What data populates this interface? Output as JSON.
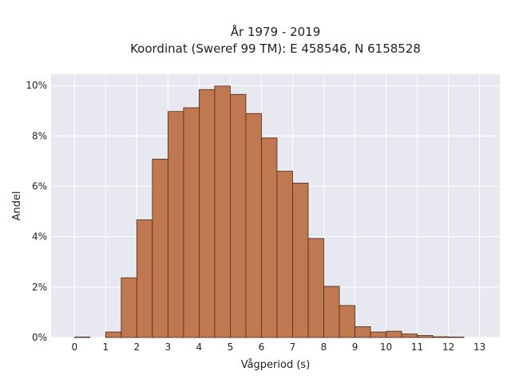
{
  "chart_data": {
    "type": "bar",
    "title_line1": "År 1979 - 2019",
    "title_line2": "Koordinat (Sweref 99 TM): E 458546, N 6158528",
    "xlabel": "Vågperiod (s)",
    "ylabel": "Andel",
    "bin_width": 0.5,
    "x": [
      0,
      0.5,
      1,
      1.5,
      2,
      2.5,
      3,
      3.5,
      4,
      4.5,
      5,
      5.5,
      6,
      6.5,
      7,
      7.5,
      8,
      8.5,
      9,
      9.5,
      10,
      10.5,
      11,
      11.5,
      12,
      12.5
    ],
    "values": [
      0.02,
      0,
      0.22,
      2.37,
      4.67,
      7.08,
      8.97,
      9.12,
      9.84,
      9.98,
      9.65,
      8.89,
      7.92,
      6.6,
      6.13,
      3.93,
      2.03,
      1.27,
      0.43,
      0.22,
      0.25,
      0.14,
      0.08,
      0.03,
      0.02,
      0
    ],
    "xlim": [
      -0.75,
      13.65
    ],
    "ylim": [
      0,
      10.45
    ],
    "x_ticks": [
      "0",
      "1",
      "2",
      "3",
      "4",
      "5",
      "6",
      "7",
      "8",
      "9",
      "10",
      "11",
      "12",
      "13"
    ],
    "x_tick_values": [
      0,
      1,
      2,
      3,
      4,
      5,
      6,
      7,
      8,
      9,
      10,
      11,
      12,
      13
    ],
    "y_ticks": [
      "0%",
      "2%",
      "4%",
      "6%",
      "8%",
      "10%"
    ],
    "y_tick_values": [
      0,
      2,
      4,
      6,
      8,
      10
    ],
    "grid": true,
    "bar_color": "#c07850",
    "bar_edge_color": "#4a2a18",
    "plot_bg_color": "#e8e8f1"
  }
}
